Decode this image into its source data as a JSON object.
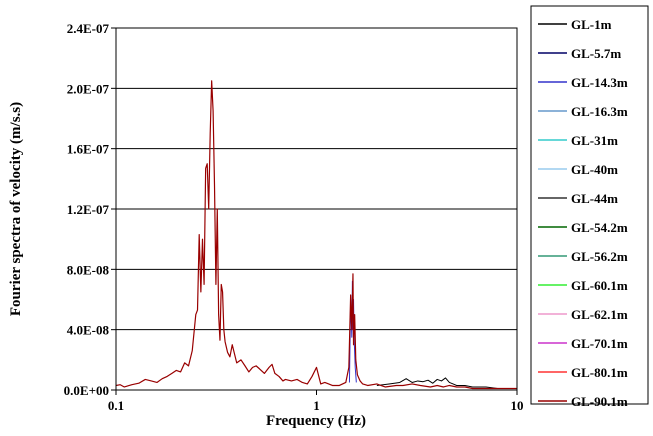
{
  "chart_data": {
    "type": "line",
    "title": "",
    "xlabel": "Frequency (Hz)",
    "ylabel": "Fourier spectra of velocity (m/s.s)",
    "x_scale": "log",
    "xlim": [
      0.1,
      10
    ],
    "ylim": [
      0,
      2.4e-07
    ],
    "x_ticks": [
      0.1,
      1,
      10
    ],
    "x_tick_labels": [
      "0.1",
      "1",
      "10"
    ],
    "y_ticks": [
      0,
      4e-08,
      8e-08,
      1.2e-07,
      1.6e-07,
      2e-07,
      2.4e-07
    ],
    "y_tick_labels": [
      "0.0E+00",
      "4.0E-08",
      "8.0E-08",
      "1.2E-07",
      "1.6E-07",
      "2.0E-07",
      "2.4E-07"
    ],
    "grid": "horizontal",
    "legend_position": "right",
    "series": [
      {
        "name": "GL-1m",
        "color": "#000000"
      },
      {
        "name": "GL-5.7m",
        "color": "#000066"
      },
      {
        "name": "GL-14.3m",
        "color": "#3333cc"
      },
      {
        "name": "GL-16.3m",
        "color": "#6699cc"
      },
      {
        "name": "GL-31m",
        "color": "#33cccc"
      },
      {
        "name": "GL-40m",
        "color": "#99ccee"
      },
      {
        "name": "GL-44m",
        "color": "#333333"
      },
      {
        "name": "GL-54.2m",
        "color": "#006600"
      },
      {
        "name": "GL-56.2m",
        "color": "#339977"
      },
      {
        "name": "GL-60.1m",
        "color": "#33ee33"
      },
      {
        "name": "GL-62.1m",
        "color": "#ee99cc"
      },
      {
        "name": "GL-70.1m",
        "color": "#cc33cc"
      },
      {
        "name": "GL-80.1m",
        "color": "#ff3333"
      },
      {
        "name": "GL-90.1m",
        "color": "#990000"
      }
    ],
    "dominant_curve": {
      "x": [
        0.1,
        0.105,
        0.11,
        0.12,
        0.13,
        0.14,
        0.15,
        0.16,
        0.17,
        0.18,
        0.19,
        0.2,
        0.21,
        0.22,
        0.23,
        0.24,
        0.25,
        0.255,
        0.26,
        0.265,
        0.27,
        0.275,
        0.28,
        0.285,
        0.29,
        0.295,
        0.3,
        0.305,
        0.31,
        0.315,
        0.32,
        0.325,
        0.33,
        0.335,
        0.34,
        0.345,
        0.35,
        0.36,
        0.37,
        0.38,
        0.4,
        0.42,
        0.44,
        0.46,
        0.48,
        0.5,
        0.52,
        0.55,
        0.58,
        0.6,
        0.62,
        0.65,
        0.68,
        0.7,
        0.75,
        0.8,
        0.85,
        0.9,
        0.95,
        1.0,
        1.05,
        1.1,
        1.15,
        1.2,
        1.3,
        1.4,
        1.45,
        1.48,
        1.5,
        1.52,
        1.53,
        1.55,
        1.57,
        1.6,
        1.65,
        1.7,
        1.8,
        2.0,
        2.2,
        2.5,
        2.7,
        3.0,
        3.3,
        3.7,
        4.0,
        4.3,
        4.6,
        5.0,
        5.5,
        6.0,
        7.0,
        8.0,
        9.0,
        10.0
      ],
      "y": [
        3e-09,
        3.5e-09,
        2e-09,
        3.5e-09,
        4.5e-09,
        7e-09,
        6e-09,
        5e-09,
        7.5e-09,
        9e-09,
        1.1e-08,
        1.3e-08,
        1.2e-08,
        1.8e-08,
        1.6e-08,
        2.6e-08,
        5e-08,
        5.3e-08,
        1.03e-07,
        6.5e-08,
        1e-07,
        7e-08,
        1.47e-07,
        1.5e-07,
        1.2e-07,
        1.7e-07,
        2.05e-07,
        1.85e-07,
        1.35e-07,
        7e-08,
        1.2e-07,
        5e-08,
        3.3e-08,
        7e-08,
        6.5e-08,
        4e-08,
        3.2e-08,
        2.5e-08,
        2.2e-08,
        3e-08,
        1.8e-08,
        2e-08,
        1.6e-08,
        1.2e-08,
        1.5e-08,
        1.6e-08,
        1.4e-08,
        1.1e-08,
        1.5e-08,
        1.7e-08,
        1.1e-08,
        9e-09,
        6e-09,
        7e-09,
        6e-09,
        7e-09,
        5e-09,
        4e-09,
        9e-09,
        1.5e-08,
        4e-09,
        5e-09,
        4e-09,
        3e-09,
        3e-09,
        5e-09,
        1.5e-08,
        6.3e-08,
        4e-08,
        7.7e-08,
        3e-08,
        5e-08,
        2e-08,
        1e-08,
        6e-09,
        4e-09,
        3e-09,
        4e-09,
        2e-09,
        3e-09,
        3e-09,
        4e-09,
        3e-09,
        2e-09,
        3e-09,
        2e-09,
        3e-09,
        2e-09,
        2e-09,
        1e-09,
        1e-09,
        1e-09,
        1e-09,
        1e-09
      ]
    },
    "black_curve": {
      "x": [
        2.0,
        2.3,
        2.6,
        2.8,
        3.0,
        3.2,
        3.4,
        3.6,
        3.8,
        4.0,
        4.2,
        4.4,
        4.6,
        4.8,
        5.0,
        5.5,
        6.0,
        7.0,
        8.0,
        9.0,
        10.0
      ],
      "y": [
        3e-09,
        4e-09,
        5e-09,
        7.5e-09,
        5e-09,
        6e-09,
        5.5e-09,
        6.5e-09,
        4.5e-09,
        7e-09,
        6e-09,
        8e-09,
        5e-09,
        4e-09,
        3e-09,
        3e-09,
        2e-09,
        2e-09,
        1e-09,
        1e-09,
        1e-09
      ]
    },
    "peak_colored": {
      "x": [
        1.46,
        1.48,
        1.5,
        1.51,
        1.52,
        1.53,
        1.54,
        1.56,
        1.58
      ],
      "y": [
        5e-09,
        6e-08,
        3.5e-08,
        7.2e-08,
        4e-08,
        6e-08,
        3.5e-08,
        1.5e-08,
        5e-09
      ]
    }
  }
}
